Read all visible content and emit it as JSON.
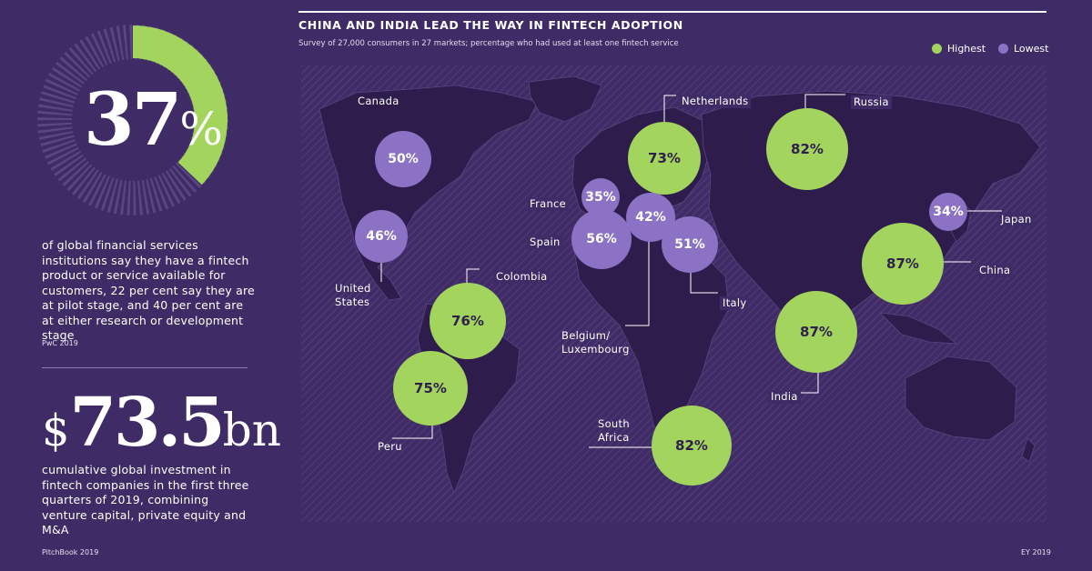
{
  "colors": {
    "background": "#3f2b65",
    "highest": "#a3d55e",
    "lowest": "#8b72c4",
    "ring_track": "#6a5690"
  },
  "left": {
    "stat1": {
      "number": "37",
      "suffix": "%",
      "percent": 37,
      "description": "of global financial services institutions say they have a fintech product or service available for customers, 22 per cent say they are at pilot stage, and 40 per cent are at either research or development stage",
      "source": "PwC 2019"
    },
    "stat2": {
      "prefix": "$",
      "number": "73.5",
      "suffix": "bn",
      "description": "cumulative global investment in fintech companies in the first three quarters of 2019, combining venture capital, private equity and M&A",
      "source": "PitchBook 2019"
    }
  },
  "map": {
    "title": "CHINA AND INDIA LEAD THE WAY IN FINTECH ADOPTION",
    "subtitle": "Survey of 27,000 consumers in 27 markets; percentage who had used at least one fintech service",
    "legend": {
      "highest": "Highest",
      "lowest": "Lowest"
    },
    "source": "EY 2019"
  },
  "chart_data": {
    "type": "bubble-map",
    "title": "CHINA AND INDIA LEAD THE WAY IN FINTECH ADOPTION",
    "subtitle": "Survey of 27,000 consumers in 27 markets; percentage who had used at least one fintech service",
    "legend": [
      "Highest",
      "Lowest"
    ],
    "points": [
      {
        "country": "Canada",
        "value": 50,
        "label": "50%",
        "group": "Lowest"
      },
      {
        "country": "United States",
        "value": 46,
        "label": "46%",
        "group": "Lowest"
      },
      {
        "country": "Colombia",
        "value": 76,
        "label": "76%",
        "group": "Highest"
      },
      {
        "country": "Peru",
        "value": 75,
        "label": "75%",
        "group": "Highest"
      },
      {
        "country": "Netherlands",
        "value": 73,
        "label": "73%",
        "group": "Highest"
      },
      {
        "country": "France",
        "value": 35,
        "label": "35%",
        "group": "Lowest"
      },
      {
        "country": "Spain",
        "value": 56,
        "label": "56%",
        "group": "Lowest"
      },
      {
        "country": "Belgium/ Luxembourg",
        "value": 42,
        "label": "42%",
        "group": "Lowest"
      },
      {
        "country": "Italy",
        "value": 51,
        "label": "51%",
        "group": "Lowest"
      },
      {
        "country": "Russia",
        "value": 82,
        "label": "82%",
        "group": "Highest"
      },
      {
        "country": "Japan",
        "value": 34,
        "label": "34%",
        "group": "Lowest"
      },
      {
        "country": "China",
        "value": 87,
        "label": "87%",
        "group": "Highest"
      },
      {
        "country": "India",
        "value": 87,
        "label": "87%",
        "group": "Highest"
      },
      {
        "country": "South Africa",
        "value": 82,
        "label": "82%",
        "group": "Highest"
      }
    ]
  }
}
